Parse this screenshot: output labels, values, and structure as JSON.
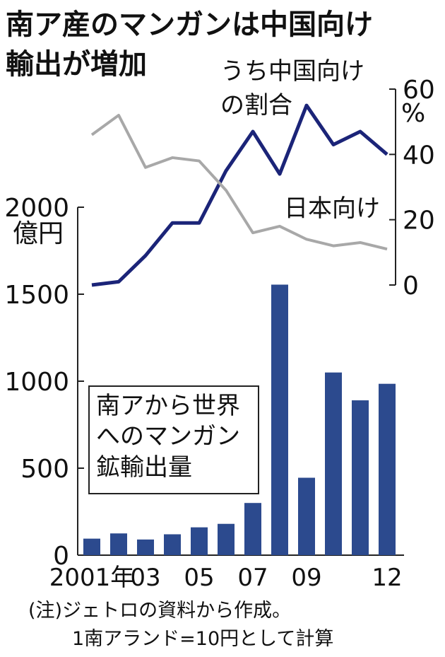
{
  "headline": [
    "南ア産のマンガンは中国向け",
    "輸出が増加"
  ],
  "notes": [
    "(注)ジェトロの資料から作成。",
    "1南アランド=10円として計算"
  ],
  "chart_data": [
    {
      "type": "bar",
      "title": [
        "南アから世界",
        "へのマンガン",
        "鉱輸出量"
      ],
      "ylabel": "2000億円",
      "ylim": [
        0,
        2000
      ],
      "y_ticks": [
        "0",
        "500",
        "1000",
        "1500",
        "2000"
      ],
      "ytick_values": [
        0,
        500,
        1000,
        1500,
        2000
      ],
      "unit": "億円",
      "x": [
        2001,
        2002,
        2003,
        2004,
        2005,
        2006,
        2007,
        2008,
        2009,
        2010,
        2011,
        2012
      ],
      "x_tick_labels": [
        "2001年",
        "03",
        "05",
        "07",
        "09",
        "12"
      ],
      "x_tick_years": [
        2001,
        2003,
        2005,
        2007,
        2009,
        2012
      ],
      "values": [
        95,
        125,
        90,
        120,
        160,
        180,
        300,
        1555,
        445,
        1050,
        890,
        985
      ],
      "color": "#2c4a8e"
    },
    {
      "type": "line",
      "ylabel": [
        "60",
        "%"
      ],
      "ylim": [
        0,
        60
      ],
      "y_ticks": [
        "0",
        "20",
        "40",
        "60"
      ],
      "ytick_values": [
        0,
        20,
        40,
        60
      ],
      "x": [
        2001,
        2002,
        2003,
        2004,
        2005,
        2006,
        2007,
        2008,
        2009,
        2010,
        2011,
        2012
      ],
      "series": [
        {
          "name": "うち中国向けの割合",
          "name_lines": [
            "うち中国向け",
            "の割合"
          ],
          "color": "#1b2478",
          "values": [
            0,
            1,
            9,
            19,
            19,
            35,
            47,
            34,
            55,
            43,
            47,
            40
          ]
        },
        {
          "name": "日本向け",
          "name_lines": [
            "日本向け"
          ],
          "color": "#a8a8a8",
          "values": [
            46,
            52,
            36,
            39,
            38,
            29,
            16,
            18,
            14,
            12,
            13,
            11
          ]
        }
      ]
    }
  ]
}
